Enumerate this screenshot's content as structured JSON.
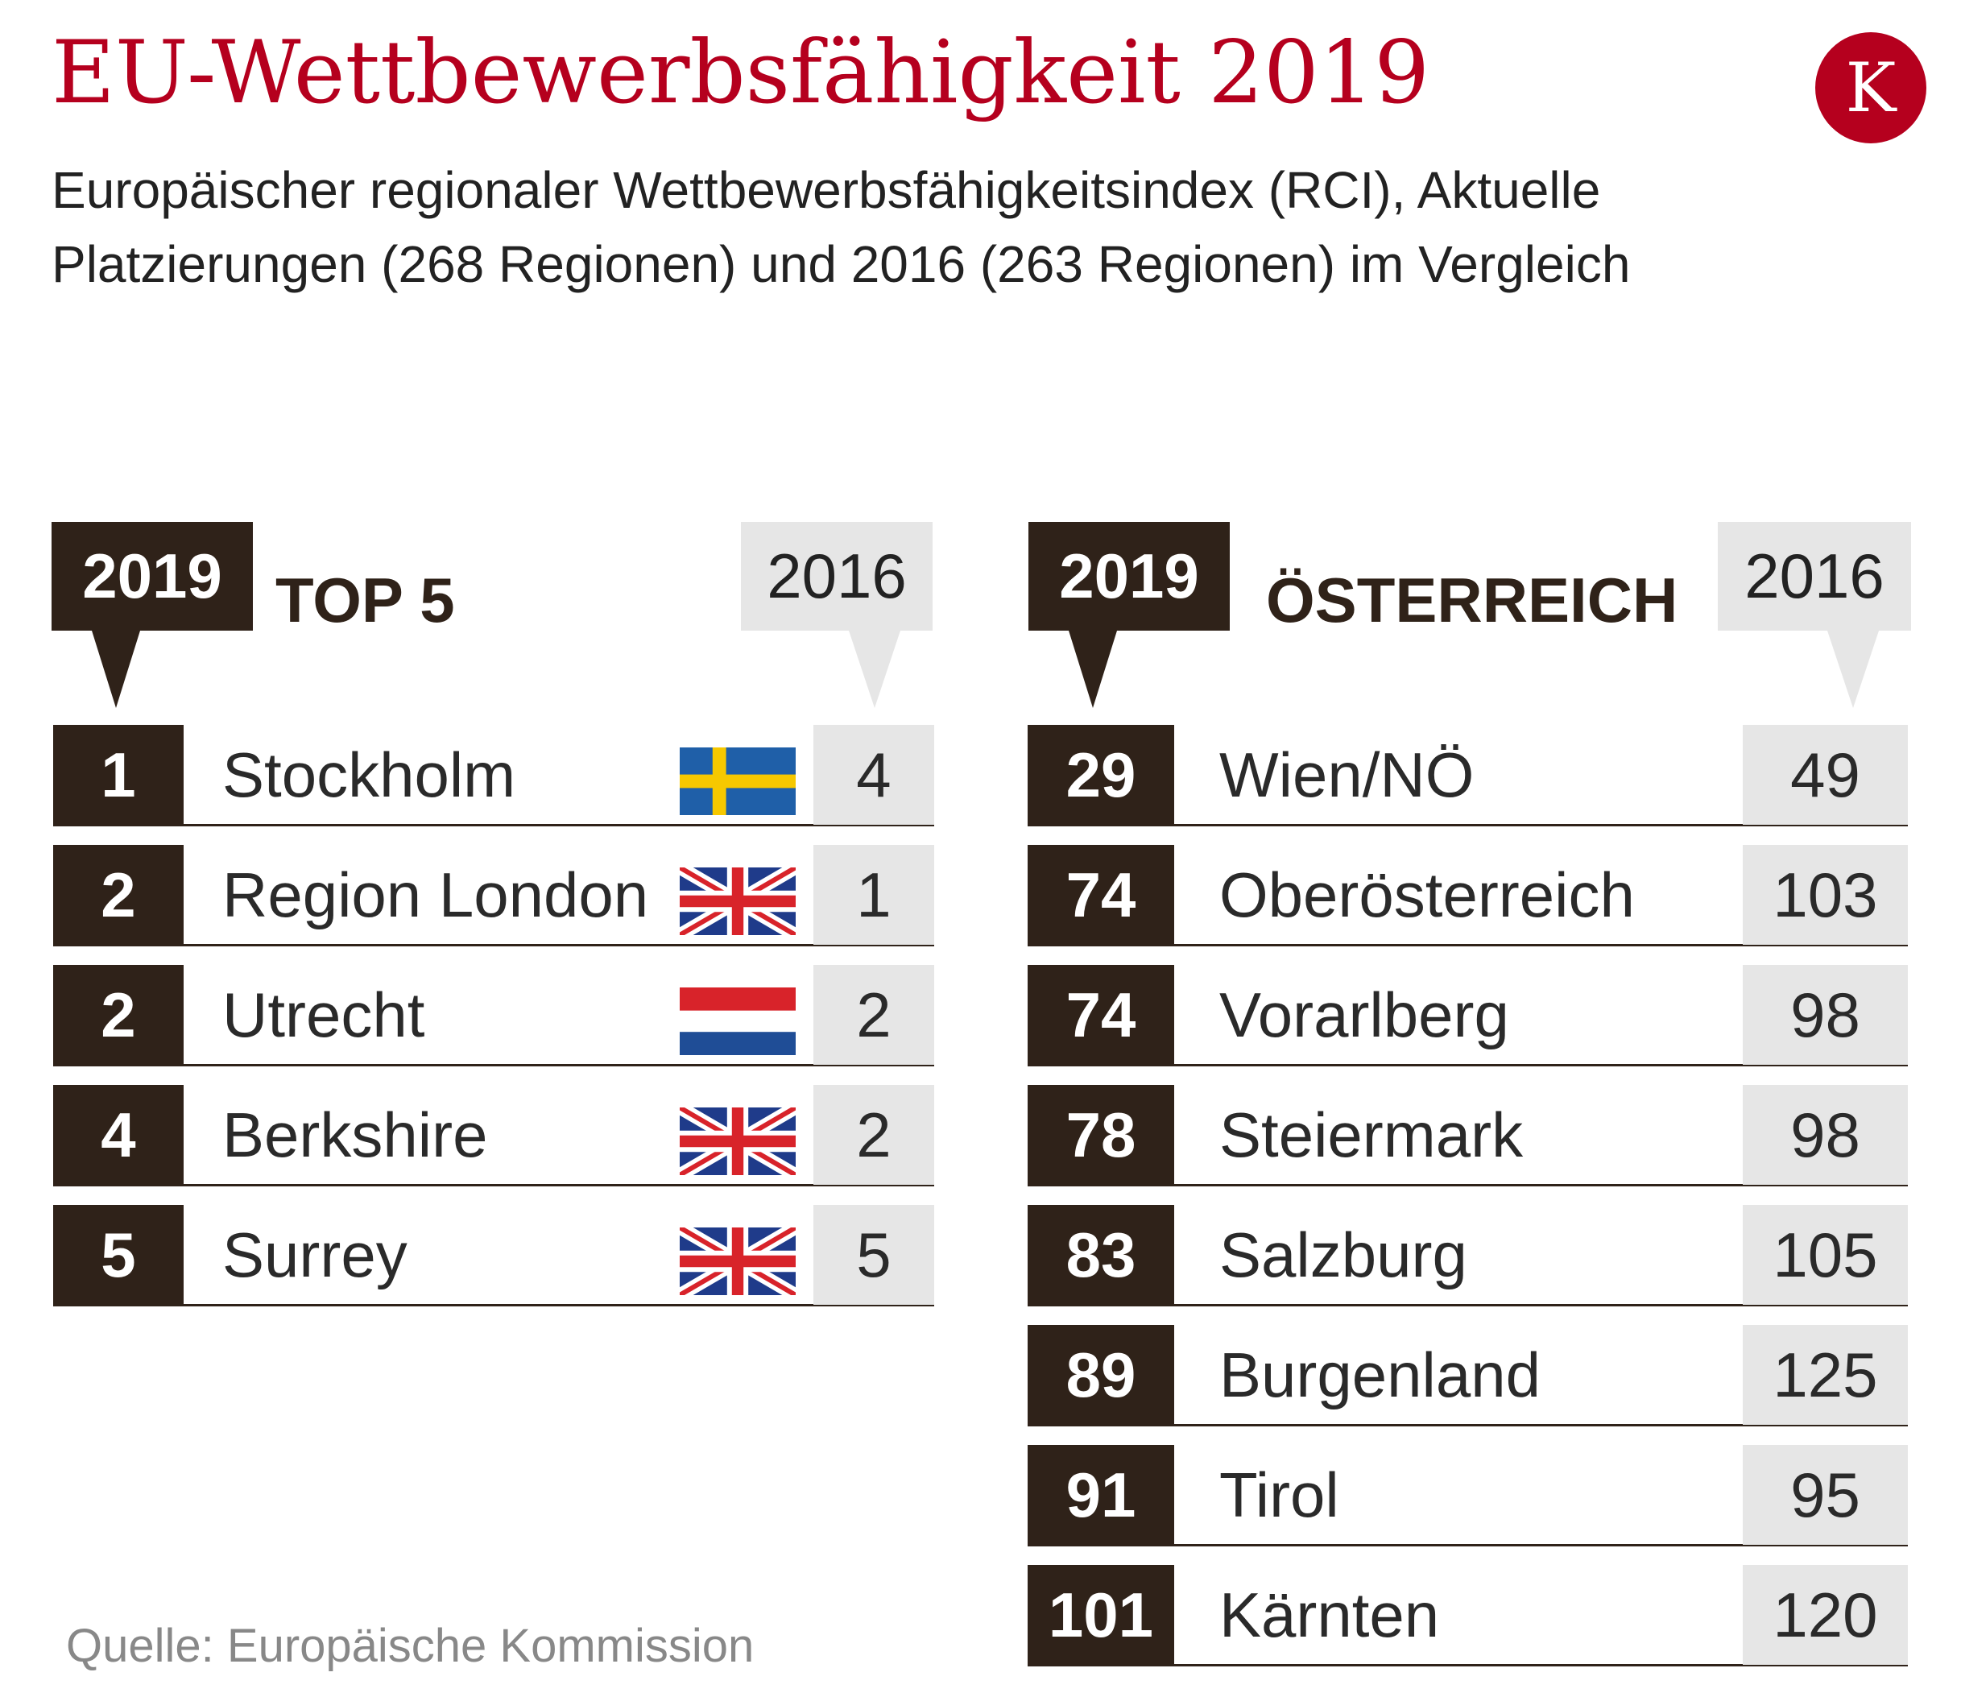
{
  "title": "EU-Wettbewerbsfähigkeit 2019",
  "subtitle": "Europäischer regionaler Wettbewerbsfähigkeitsindex (RCI), Aktuelle Platzierungen (268 Regionen) und 2016 (263 Regionen) im Vergleich",
  "logo": "K",
  "source": "Quelle: Europäische Kommission",
  "colors": {
    "accent": "#b5001e",
    "dark": "#2f2219",
    "grey": "#e6e6e6"
  },
  "chart_data": [
    {
      "type": "table",
      "title": "TOP 5",
      "year_label": "2019",
      "prev_label": "2016",
      "rows": [
        {
          "rank": "1",
          "region": "Stockholm",
          "flag": "sweden-flag",
          "prev": "4"
        },
        {
          "rank": "2",
          "region": "Region London",
          "flag": "uk-flag",
          "prev": "1"
        },
        {
          "rank": "2",
          "region": "Utrecht",
          "flag": "netherlands-flag",
          "prev": "2"
        },
        {
          "rank": "4",
          "region": "Berkshire",
          "flag": "uk-flag",
          "prev": "2"
        },
        {
          "rank": "5",
          "region": "Surrey",
          "flag": "uk-flag",
          "prev": "5"
        }
      ]
    },
    {
      "type": "table",
      "title": "ÖSTERREICH",
      "year_label": "2019",
      "prev_label": "2016",
      "rows": [
        {
          "rank": "29",
          "region": "Wien/NÖ",
          "prev": "49"
        },
        {
          "rank": "74",
          "region": "Oberösterreich",
          "prev": "103"
        },
        {
          "rank": "74",
          "region": "Vorarlberg",
          "prev": "98"
        },
        {
          "rank": "78",
          "region": "Steiermark",
          "prev": "98"
        },
        {
          "rank": "83",
          "region": "Salzburg",
          "prev": "105"
        },
        {
          "rank": "89",
          "region": "Burgenland",
          "prev": "125"
        },
        {
          "rank": "91",
          "region": "Tirol",
          "prev": "95"
        },
        {
          "rank": "101",
          "region": "Kärnten",
          "prev": "120"
        }
      ]
    }
  ]
}
